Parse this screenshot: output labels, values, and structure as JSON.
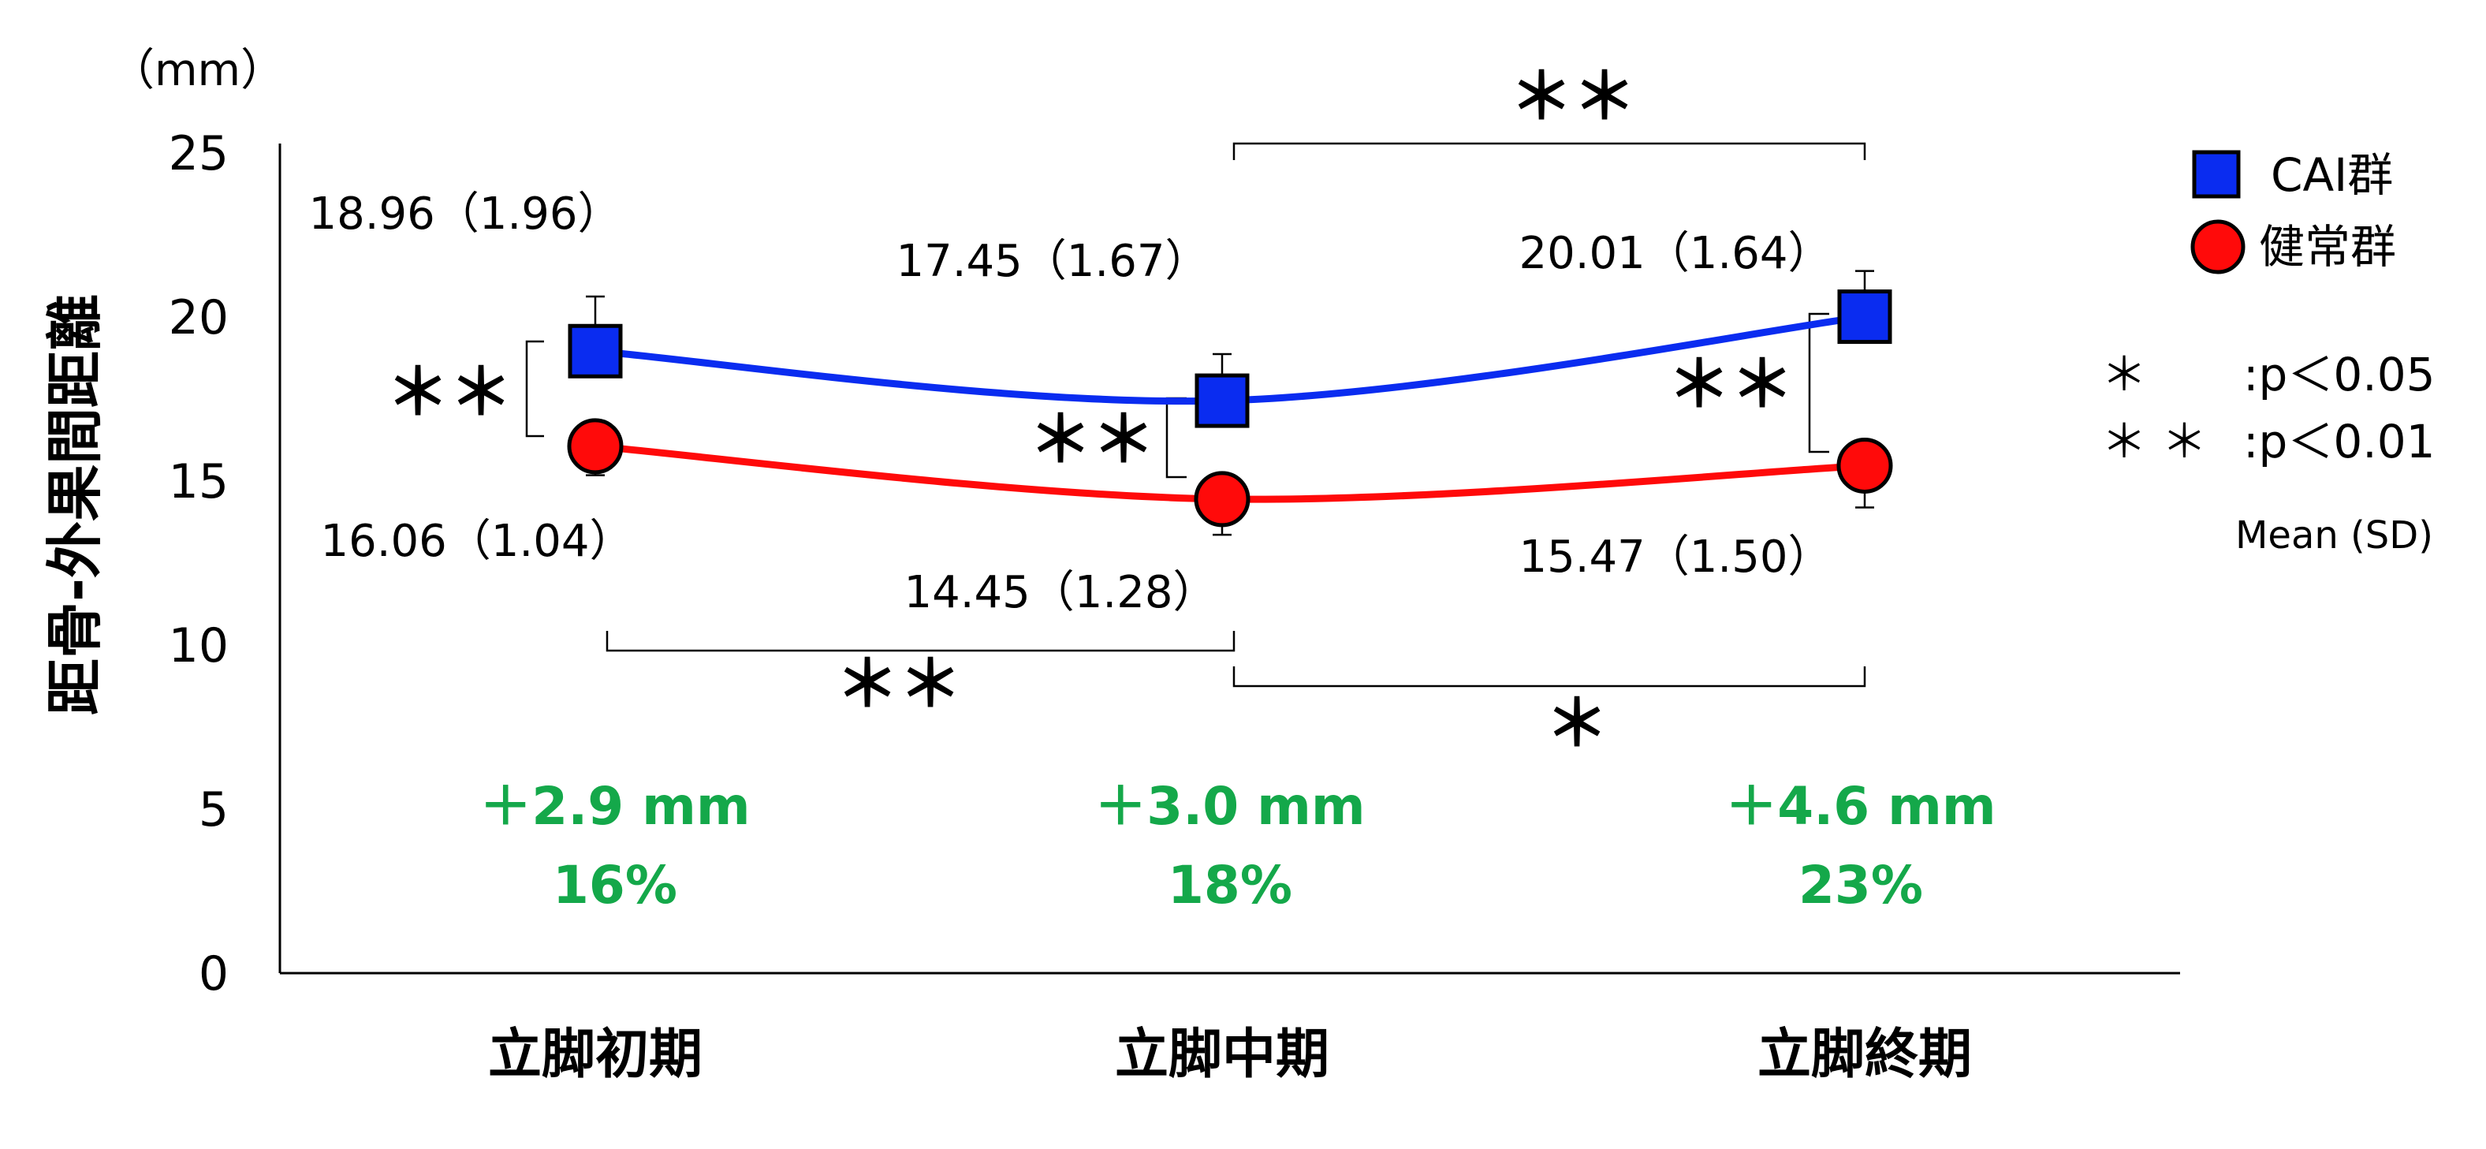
{
  "chart_data": {
    "type": "line",
    "categories": [
      "立脚初期",
      "立脚中期",
      "立脚終期"
    ],
    "ylabel": "距骨-外果間距離",
    "yunit": "（mm）",
    "ylim": [
      0,
      25
    ],
    "yticks": [
      "0",
      "5",
      "10",
      "15",
      "20",
      "25"
    ],
    "grid": false,
    "legend_position": "top-right",
    "series": [
      {
        "name": "CAI群",
        "values": [
          18.96,
          17.45,
          20.01
        ],
        "sd": [
          1.96,
          1.67,
          1.64
        ],
        "color": "#0a2cf0",
        "marker": "square",
        "labels": [
          "18.96（1.96）",
          "17.45（1.67）",
          "20.01（1.64）"
        ]
      },
      {
        "name": "健常群",
        "values": [
          16.06,
          14.45,
          15.47
        ],
        "sd": [
          1.04,
          1.28,
          1.5
        ],
        "color": "#ff0a0a",
        "marker": "circle",
        "labels": [
          "16.06（1.04）",
          "14.45（1.28）",
          "15.47（1.50）"
        ]
      }
    ],
    "differences": [
      {
        "mm": "＋2.9 mm",
        "pct": "16%"
      },
      {
        "mm": "＋3.0 mm",
        "pct": "18%"
      },
      {
        "mm": "＋4.6 mm",
        "pct": "23%"
      }
    ],
    "significance": {
      "within_phase": [
        "＊＊",
        "＊＊",
        "＊＊"
      ],
      "cai_mid_vs_late": "＊＊",
      "healthy_early_vs_mid": "＊＊",
      "healthy_mid_vs_late": "＊"
    },
    "legend_notes": {
      "p05": {
        "stars": "＊",
        "text": ":p＜0.05"
      },
      "p01": {
        "stars": "＊ ＊",
        "text": ":p＜0.01"
      },
      "stat": "Mean (SD)"
    }
  }
}
